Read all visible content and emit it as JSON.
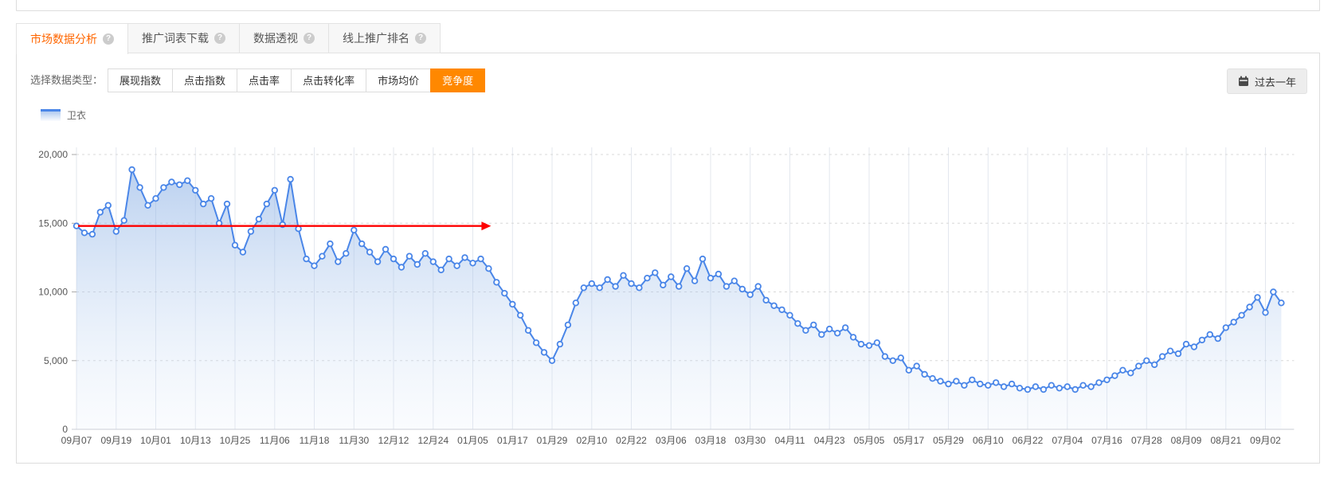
{
  "tabs": {
    "items": [
      {
        "label": "市场数据分析"
      },
      {
        "label": "推广词表下载"
      },
      {
        "label": "数据透视"
      },
      {
        "label": "线上推广排名"
      }
    ],
    "active_index": 0
  },
  "controls": {
    "label": "选择数据类型：",
    "options": [
      "展现指数",
      "点击指数",
      "点击率",
      "点击转化率",
      "市场均价",
      "竞争度"
    ],
    "active_option": "竞争度",
    "date_range_label": "过去一年"
  },
  "legend": {
    "name": "卫衣"
  },
  "colors": {
    "accent_orange": "#ff8800",
    "tab_active_text": "#ff6600",
    "line_blue": "#4a86e8",
    "arrow_red": "#fe0000",
    "grid_vertical": "#e3e7ee",
    "grid_dashed": "#d8d8d8"
  },
  "chart_data": {
    "type": "line",
    "title": "",
    "xlabel": "",
    "ylabel": "",
    "ylim": [
      0,
      20000
    ],
    "yticks": [
      {
        "value": 0,
        "label": "0"
      },
      {
        "value": 5000,
        "label": "5,000"
      },
      {
        "value": 10000,
        "label": "10,000"
      },
      {
        "value": 15000,
        "label": "15,000"
      },
      {
        "value": 20000,
        "label": "20,000"
      }
    ],
    "x_labels": [
      "09月07",
      "09月19",
      "10月01",
      "10月13",
      "10月25",
      "11月06",
      "11月18",
      "11月30",
      "12月12",
      "12月24",
      "01月05",
      "01月17",
      "01月29",
      "02月10",
      "02月22",
      "03月06",
      "03月18",
      "03月30",
      "04月11",
      "04月23",
      "05月05",
      "05月17",
      "05月29",
      "06月10",
      "06月22",
      "07月04",
      "07月16",
      "07月28",
      "08月09",
      "08月21",
      "09月02"
    ],
    "points_per_label": 5,
    "grid": true,
    "legend_position": "top-left",
    "series": [
      {
        "name": "卫衣",
        "values": [
          14800,
          14300,
          14200,
          15800,
          16300,
          14400,
          15200,
          18900,
          17600,
          16300,
          16800,
          17600,
          18000,
          17800,
          18100,
          17400,
          16400,
          16800,
          15000,
          16400,
          13400,
          12900,
          14400,
          15300,
          16400,
          17400,
          14900,
          18200,
          14600,
          12400,
          11900,
          12600,
          13500,
          12200,
          12800,
          14500,
          13500,
          12900,
          12200,
          13100,
          12400,
          11800,
          12600,
          12000,
          12800,
          12200,
          11600,
          12400,
          11900,
          12500,
          12100,
          12400,
          11700,
          10700,
          9900,
          9100,
          8300,
          7200,
          6300,
          5600,
          5000,
          6200,
          7600,
          9200,
          10300,
          10600,
          10300,
          10900,
          10400,
          11200,
          10600,
          10300,
          11000,
          11400,
          10500,
          11100,
          10400,
          11700,
          10800,
          12400,
          11000,
          11300,
          10400,
          10800,
          10200,
          9800,
          10400,
          9400,
          9000,
          8700,
          8300,
          7700,
          7200,
          7600,
          6900,
          7300,
          7000,
          7400,
          6700,
          6200,
          6100,
          6300,
          5300,
          5000,
          5200,
          4300,
          4600,
          4000,
          3700,
          3500,
          3300,
          3500,
          3200,
          3600,
          3300,
          3200,
          3400,
          3100,
          3300,
          3000,
          2900,
          3100,
          2900,
          3200,
          3000,
          3100,
          2900,
          3200,
          3100,
          3400,
          3600,
          3900,
          4300,
          4100,
          4600,
          5000,
          4700,
          5300,
          5700,
          5500,
          6200,
          6000,
          6500,
          6900,
          6600,
          7400,
          7800,
          8300,
          8900,
          9600,
          8500,
          10000,
          9200
        ]
      }
    ],
    "annotation": {
      "shape": "horizontal-arrow",
      "value": 14800,
      "from_index": 0.2,
      "to_index": 51.3,
      "color": "#fe0000"
    }
  }
}
